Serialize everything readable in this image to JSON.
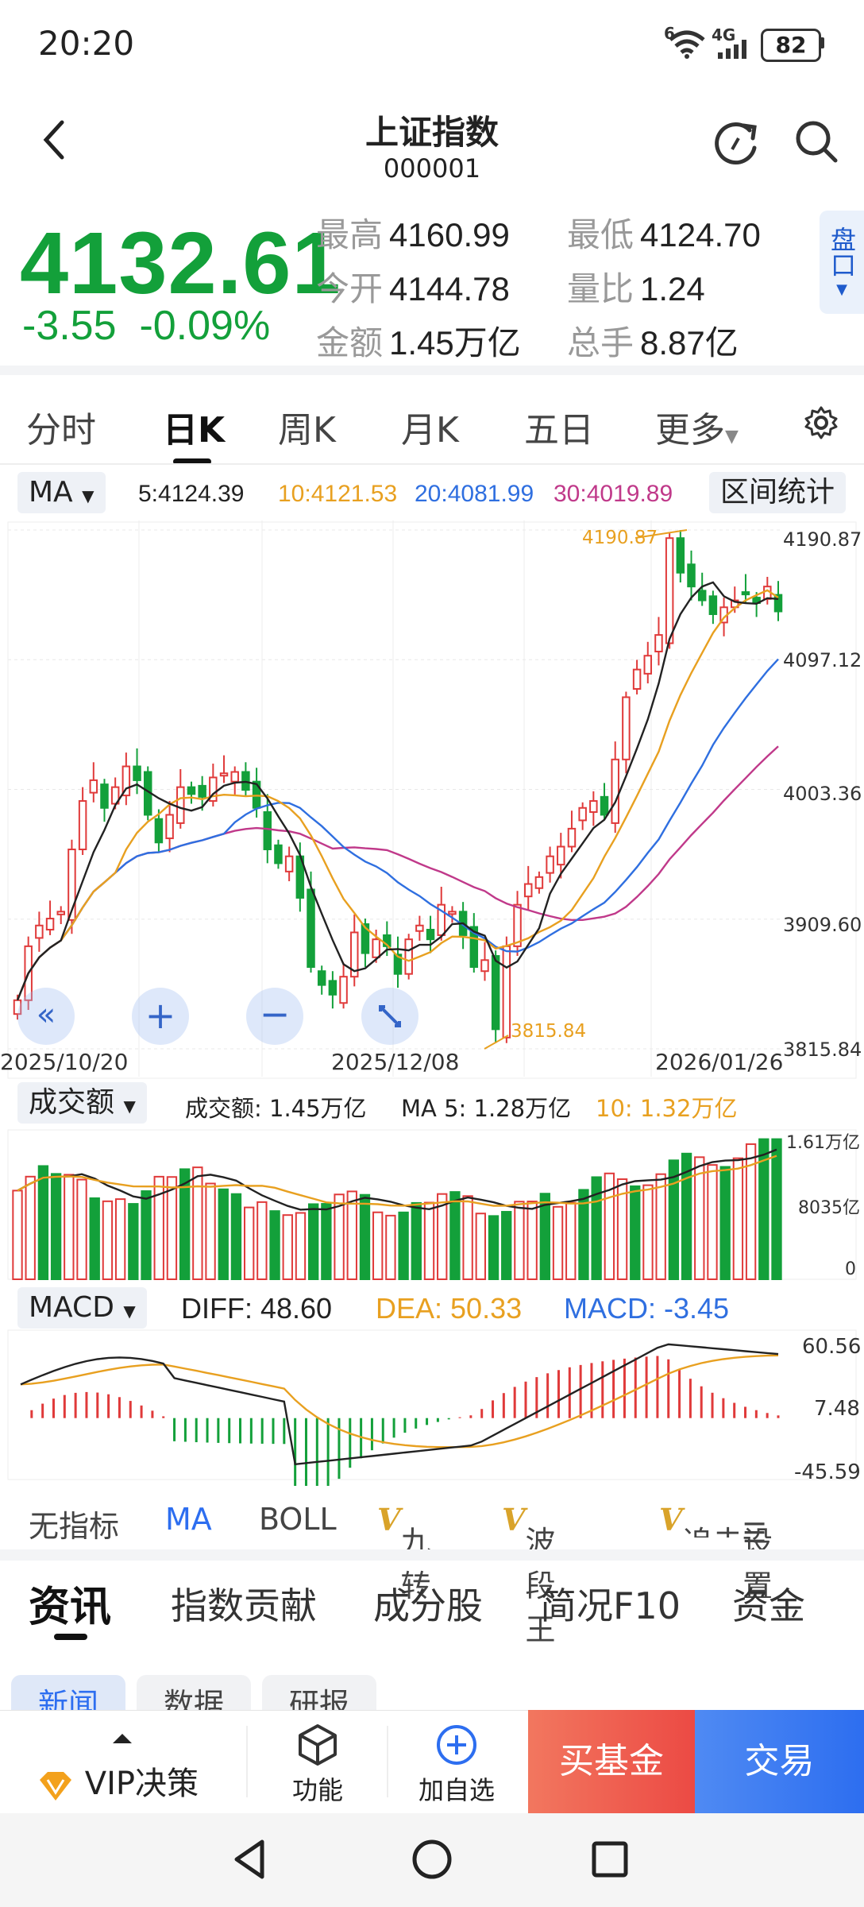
{
  "status_bar": {
    "time": "20:20",
    "network": "4G",
    "sim": "6",
    "battery": "82"
  },
  "header": {
    "title": "上证指数",
    "code": "000001"
  },
  "quote": {
    "price": "4132.61",
    "change": "-3.55",
    "change_pct": "-0.09%",
    "stats": [
      {
        "label": "最高",
        "value": "4160.99"
      },
      {
        "label": "最低",
        "value": "4124.70"
      },
      {
        "label": "今开",
        "value": "4144.78"
      },
      {
        "label": "量比",
        "value": "1.24"
      },
      {
        "label": "金额",
        "value": "1.45万亿"
      },
      {
        "label": "总手",
        "value": "8.87亿"
      }
    ],
    "pankou": "盘口"
  },
  "period_tabs": [
    "分时",
    "日K",
    "周K",
    "月K",
    "五日",
    "更多"
  ],
  "active_period": "日K",
  "ma_bar": {
    "selector": "MA",
    "ma5": "5:4124.39",
    "ma10": "10:4121.53",
    "ma20": "20:4081.99",
    "ma30": "30:4019.89",
    "range_stats": "区间统计"
  },
  "kline_axis": {
    "y_labels": [
      "4190.87",
      "4097.12",
      "4003.36",
      "3909.60",
      "3815.84"
    ],
    "x_labels": [
      "2025/10/20",
      "2025/12/08",
      "2026/01/26"
    ],
    "max_label": "4190.87",
    "min_label": "3815.84"
  },
  "volume_bar": {
    "selector": "成交额",
    "value": "成交额: 1.45万亿",
    "ma5": "MA 5: 1.28万亿",
    "ma10": "10: 1.32万亿",
    "y_labels": [
      "1.61万亿",
      "8035亿",
      "0"
    ]
  },
  "macd_bar": {
    "selector": "MACD",
    "diff": "DIFF: 48.60",
    "dea": "DEA: 50.33",
    "macd": "MACD: -3.45",
    "y_labels": [
      "60.56",
      "7.48",
      "-45.59"
    ]
  },
  "indicator_tabs": [
    "无指标",
    "MA",
    "BOLL",
    "九转",
    "波段王",
    "追击",
    "设置"
  ],
  "active_indicator": "MA",
  "news_tabs": [
    "资讯",
    "指数贡献",
    "成分股",
    "简况F10",
    "资金"
  ],
  "active_news_tab": "资讯",
  "sub_chips": [
    "新闻",
    "数据",
    "研报"
  ],
  "bottom_bar": {
    "vip": "VIP决策",
    "function": "功能",
    "add_watch": "加自选",
    "buy_fund": "买基金",
    "trade": "交易"
  },
  "colors": {
    "up": "#e03a3a",
    "down": "#13a03a",
    "ma5": "#222222",
    "ma10": "#e8a020",
    "ma20": "#2f6fe0",
    "ma30": "#c0398a",
    "accent": "#2d6ef0"
  },
  "chart_data": [
    {
      "type": "candlestick",
      "title": "日K",
      "x_tick_labels": [
        "2025/10/20",
        "2025/12/08",
        "2026/01/26"
      ],
      "ylim": [
        3815.84,
        4190.87
      ],
      "close_approx": [
        3851,
        3890,
        3905,
        3910,
        3915,
        3960,
        3995,
        4010,
        3990,
        4005,
        4020,
        4010,
        3985,
        3965,
        3985,
        4005,
        4000,
        3998,
        4012,
        4015,
        4016,
        4003,
        3990,
        3960,
        3950,
        3955,
        3925,
        3875,
        3862,
        3855,
        3868,
        3900,
        3885,
        3895,
        3890,
        3870,
        3895,
        3905,
        3895,
        3920,
        3915,
        3898,
        3875,
        3880,
        3830,
        3890,
        3920,
        3935,
        3940,
        3955,
        3962,
        3975,
        3990,
        3995,
        3985,
        4025,
        4070,
        4090,
        4100,
        4115,
        4185,
        4160,
        4150,
        4140,
        4130,
        4135,
        4140,
        4145,
        4138,
        4150,
        4132
      ],
      "max_high": 4190.87,
      "min_low": 3815.84,
      "moving_averages": {
        "MA5": 4124.39,
        "MA10": 4121.53,
        "MA20": 4081.99,
        "MA30": 4019.89
      }
    },
    {
      "type": "bar",
      "title": "成交额",
      "ylim": [
        0,
        1.61
      ],
      "unit": "万亿",
      "latest": 1.45,
      "ma5": 1.28,
      "ma10": 1.32
    },
    {
      "type": "bar",
      "title": "MACD",
      "ylim": [
        -45.59,
        60.56
      ],
      "diff": 48.6,
      "dea": 50.33,
      "macd": -3.45
    }
  ]
}
